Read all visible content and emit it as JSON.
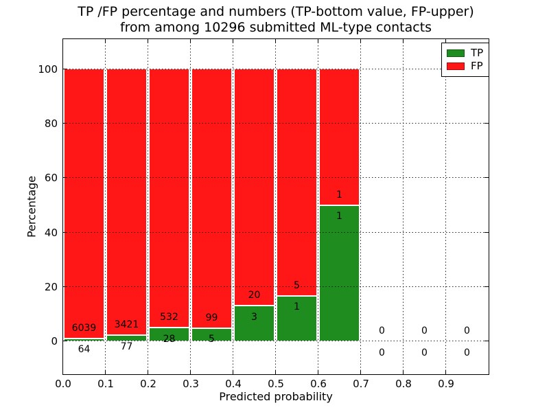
{
  "chart_data": {
    "type": "bar",
    "stacked": true,
    "title": "TP /FP percentage and numbers (TP-bottom value, FP-upper) from among 10296 submitted ML-type contacts",
    "title_lines": [
      "TP /FP percentage and numbers (TP-bottom value, FP-upper)",
      "from among 10296 submitted ML-type contacts"
    ],
    "xlabel": "Predicted probability",
    "ylabel": "Percentage",
    "total_contacts": 10296,
    "xlim": [
      0.0,
      1.0
    ],
    "ylim": [
      -12,
      111
    ],
    "xticks": [
      {
        "value": 0.0,
        "label": "0.0"
      },
      {
        "value": 0.1,
        "label": "0.1"
      },
      {
        "value": 0.2,
        "label": "0.2"
      },
      {
        "value": 0.3,
        "label": "0.3"
      },
      {
        "value": 0.4,
        "label": "0.4"
      },
      {
        "value": 0.5,
        "label": "0.5"
      },
      {
        "value": 0.6,
        "label": "0.6"
      },
      {
        "value": 0.7,
        "label": "0.7"
      },
      {
        "value": 0.8,
        "label": "0.8"
      },
      {
        "value": 0.9,
        "label": "0.9"
      }
    ],
    "yticks": [
      {
        "value": 0,
        "label": "0"
      },
      {
        "value": 20,
        "label": "20"
      },
      {
        "value": 40,
        "label": "40"
      },
      {
        "value": 60,
        "label": "60"
      },
      {
        "value": 80,
        "label": "80"
      },
      {
        "value": 100,
        "label": "100"
      }
    ],
    "grid": {
      "style": "dotted",
      "axes": "both"
    },
    "bin_width": 0.1,
    "bin_starts": [
      0.0,
      0.1,
      0.2,
      0.3,
      0.4,
      0.5,
      0.6,
      0.7,
      0.8,
      0.9
    ],
    "series": [
      {
        "name": "TP",
        "color": "#1e8c1e",
        "counts": [
          64,
          77,
          28,
          5,
          3,
          1,
          1,
          0,
          0,
          0
        ]
      },
      {
        "name": "FP",
        "color": "#ff1616",
        "counts": [
          6039,
          3421,
          532,
          99,
          20,
          5,
          1,
          0,
          0,
          0
        ]
      }
    ],
    "tp_percent_by_bin": [
      1.0,
      2.2,
      5.0,
      4.8,
      13.0,
      16.7,
      50.0,
      0.0,
      0.0,
      0.0
    ],
    "legend": {
      "position": "upper-right",
      "entries": [
        {
          "label": "TP",
          "color": "#1e8c1e"
        },
        {
          "label": "FP",
          "color": "#ff1616"
        }
      ]
    }
  }
}
